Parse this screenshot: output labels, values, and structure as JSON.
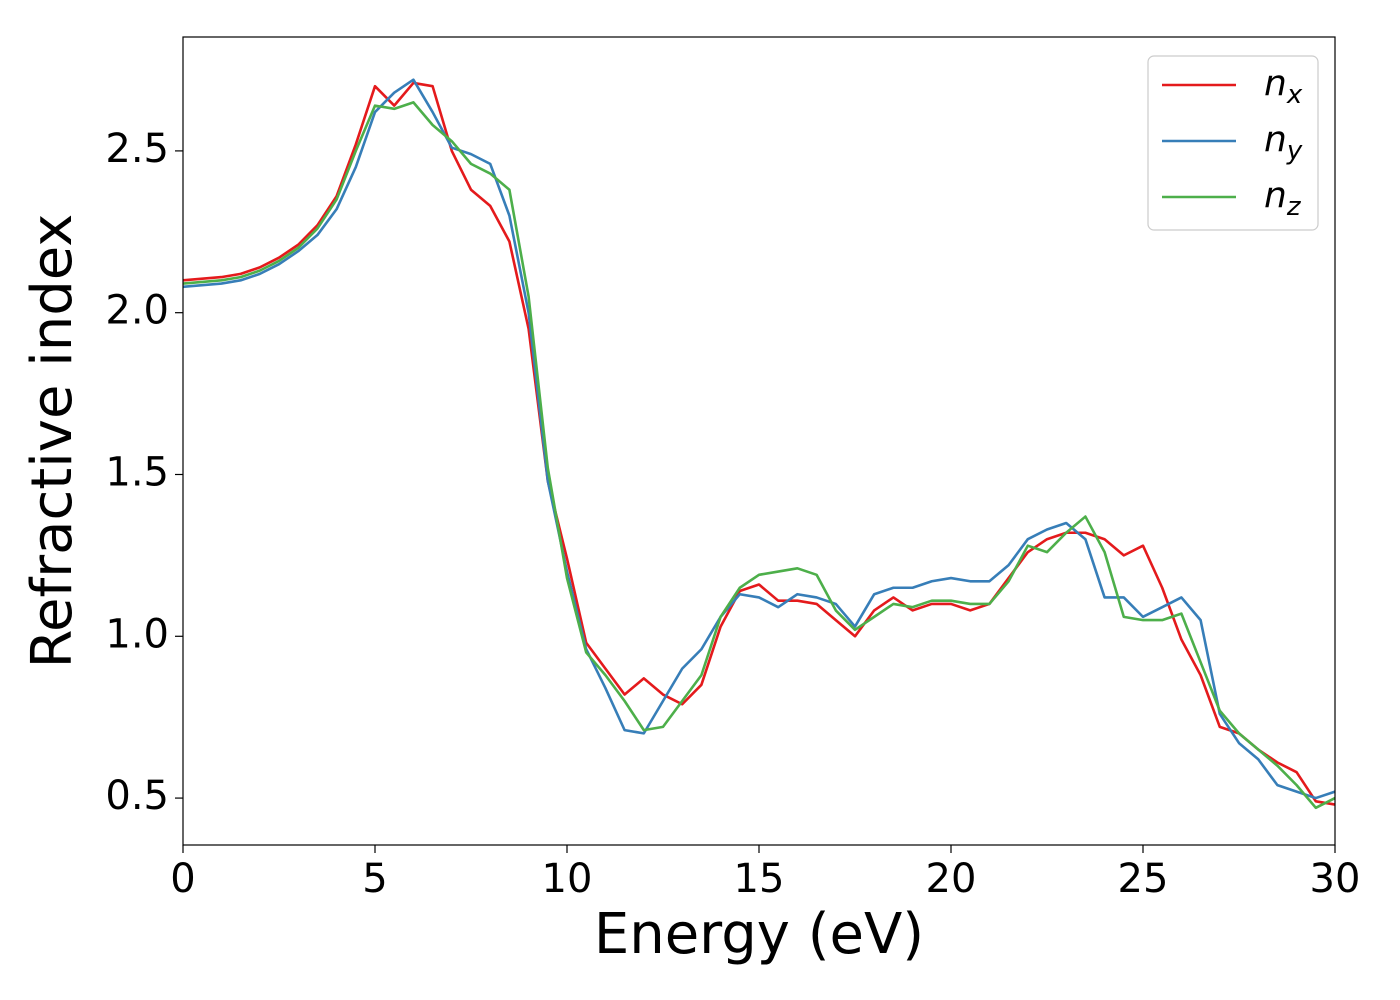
{
  "chart_data": {
    "type": "line",
    "x_label": "Energy (eV)",
    "y_label": "Refractive index",
    "x": [
      0,
      0.5,
      1,
      1.5,
      2,
      2.5,
      3,
      3.5,
      4,
      4.5,
      5,
      5.5,
      6,
      6.5,
      7,
      7.5,
      8,
      8.5,
      9,
      9.5,
      10,
      10.5,
      11,
      11.5,
      12,
      12.5,
      13,
      13.5,
      14,
      14.5,
      15,
      15.5,
      16,
      16.5,
      17,
      17.5,
      18,
      18.5,
      19,
      19.5,
      20,
      20.5,
      21,
      21.5,
      22,
      22.5,
      23,
      23.5,
      24,
      24.5,
      25,
      25.5,
      26,
      26.5,
      27,
      27.5,
      28,
      28.5,
      29,
      29.5,
      30
    ],
    "series": [
      {
        "name": "nx",
        "color": "#e41a1c",
        "values": [
          2.1,
          2.105,
          2.11,
          2.12,
          2.14,
          2.17,
          2.21,
          2.27,
          2.36,
          2.52,
          2.7,
          2.64,
          2.71,
          2.7,
          2.5,
          2.38,
          2.33,
          2.22,
          1.95,
          1.48,
          1.24,
          0.98,
          0.9,
          0.82,
          0.87,
          0.82,
          0.79,
          0.85,
          1.03,
          1.14,
          1.16,
          1.11,
          1.11,
          1.1,
          1.05,
          1.0,
          1.08,
          1.12,
          1.08,
          1.1,
          1.1,
          1.08,
          1.1,
          1.18,
          1.26,
          1.3,
          1.32,
          1.32,
          1.3,
          1.25,
          1.28,
          1.15,
          0.99,
          0.88,
          0.72,
          0.7,
          0.65,
          0.61,
          0.58,
          0.49,
          0.48
        ]
      },
      {
        "name": "ny",
        "color": "#377eb8",
        "values": [
          2.08,
          2.085,
          2.09,
          2.1,
          2.12,
          2.15,
          2.19,
          2.24,
          2.32,
          2.45,
          2.62,
          2.68,
          2.72,
          2.62,
          2.51,
          2.49,
          2.46,
          2.3,
          2.0,
          1.48,
          1.2,
          0.96,
          0.84,
          0.71,
          0.7,
          0.8,
          0.9,
          0.96,
          1.06,
          1.13,
          1.12,
          1.09,
          1.13,
          1.12,
          1.1,
          1.03,
          1.13,
          1.15,
          1.15,
          1.17,
          1.18,
          1.17,
          1.17,
          1.22,
          1.3,
          1.33,
          1.35,
          1.3,
          1.12,
          1.12,
          1.06,
          1.09,
          1.12,
          1.05,
          0.76,
          0.67,
          0.62,
          0.54,
          0.52,
          0.5,
          0.52
        ]
      },
      {
        "name": "nz",
        "color": "#4daf4a",
        "values": [
          2.09,
          2.095,
          2.1,
          2.11,
          2.13,
          2.16,
          2.2,
          2.26,
          2.35,
          2.5,
          2.64,
          2.63,
          2.65,
          2.58,
          2.53,
          2.46,
          2.43,
          2.38,
          2.05,
          1.52,
          1.18,
          0.95,
          0.88,
          0.8,
          0.71,
          0.72,
          0.8,
          0.88,
          1.06,
          1.15,
          1.19,
          1.2,
          1.21,
          1.19,
          1.08,
          1.02,
          1.06,
          1.1,
          1.09,
          1.11,
          1.11,
          1.1,
          1.1,
          1.17,
          1.28,
          1.26,
          1.32,
          1.37,
          1.26,
          1.06,
          1.05,
          1.05,
          1.07,
          0.92,
          0.77,
          0.7,
          0.65,
          0.6,
          0.54,
          0.47,
          0.5
        ]
      }
    ],
    "xlim": [
      0,
      30
    ],
    "xticks": [
      0,
      5,
      10,
      15,
      20,
      25,
      30
    ],
    "ylim": [
      0.355,
      2.852
    ],
    "yticks": [
      0.5,
      {
        "value": 1,
        "label": "1.0"
      },
      1.5,
      {
        "value": 2,
        "label": "2.0"
      },
      2.5
    ],
    "grid": false,
    "legend": "upper right"
  }
}
